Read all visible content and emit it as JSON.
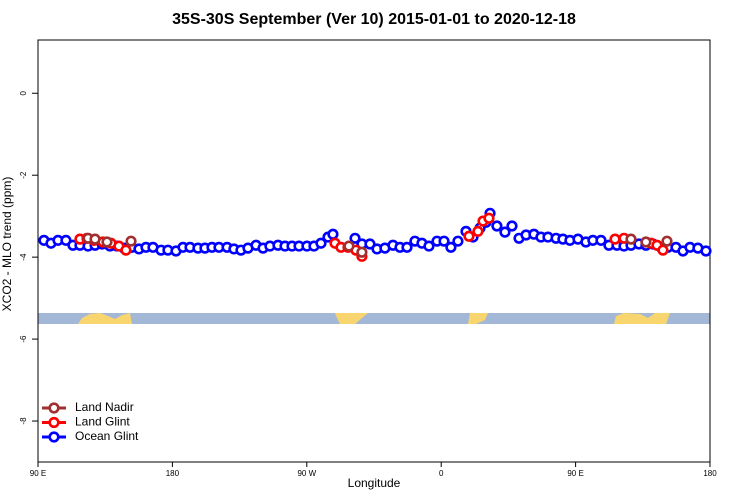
{
  "chart_data": {
    "type": "scatter",
    "title": "35S-30S September (Ver 10)   2015-01-01 to 2020-12-18",
    "x_label": "Longitude",
    "y_label": "XCO2 - MLO trend (ppm)",
    "xlim": [
      90,
      540
    ],
    "ylim": [
      -9,
      1.3
    ],
    "xticks": [
      {
        "value": 90,
        "label": "90 E"
      },
      {
        "value": 180,
        "label": "180"
      },
      {
        "value": 270,
        "label": "90 W"
      },
      {
        "value": 360,
        "label": "0"
      },
      {
        "value": 450,
        "label": "90 E"
      },
      {
        "value": 540,
        "label": "180"
      }
    ],
    "yticks": [
      0,
      -2,
      -4,
      -6,
      -8
    ],
    "legend": "bottom-left",
    "series": [
      {
        "name": "Land Nadir",
        "color": "#a03030",
        "x": [
          123.5,
          128.2,
          136.2,
          152.3,
          298.2,
          306.9,
          487.1,
          497.1,
          511.2
        ],
        "values": [
          -3.54,
          -3.56,
          -3.63,
          -3.61,
          -3.73,
          -3.88,
          -3.56,
          -3.63,
          -3.61
        ]
      },
      {
        "name": "Land Glint",
        "color": "#ff0000",
        "x": [
          118.1,
          122.8,
          127.5,
          133.5,
          138.9,
          144.2,
          148.9,
          288.9,
          292.9,
          297.6,
          302.9,
          306.9,
          378.6,
          384.6,
          388.0,
          392.0,
          476.4,
          482.4,
          500.5,
          504.5,
          508.5
        ],
        "values": [
          -3.56,
          -3.54,
          -3.59,
          -3.63,
          -3.66,
          -3.73,
          -3.83,
          -3.66,
          -3.76,
          -3.76,
          -3.83,
          -3.98,
          -3.49,
          -3.37,
          -3.12,
          -3.05,
          -3.56,
          -3.54,
          -3.66,
          -3.71,
          -3.83
        ]
      },
      {
        "name": "Ocean Glint",
        "color": "#0000ff",
        "x": [
          94.0,
          98.7,
          103.4,
          108.7,
          113.4,
          118.1,
          123.5,
          128.2,
          132.9,
          138.2,
          142.9,
          147.6,
          152.9,
          157.6,
          162.3,
          167.0,
          172.4,
          177.0,
          182.4,
          187.1,
          191.8,
          197.1,
          201.8,
          206.5,
          211.2,
          216.6,
          221.2,
          225.9,
          230.6,
          236.0,
          240.7,
          245.3,
          250.7,
          255.4,
          260.1,
          264.8,
          270.1,
          274.8,
          279.5,
          284.2,
          287.5,
          302.3,
          306.9,
          312.3,
          317.0,
          322.3,
          327.7,
          332.4,
          337.1,
          342.4,
          347.1,
          351.8,
          357.2,
          361.9,
          366.5,
          371.2,
          376.6,
          381.3,
          386.0,
          390.0,
          392.7,
          397.3,
          402.7,
          407.4,
          412.1,
          416.8,
          422.1,
          426.8,
          431.5,
          436.9,
          441.5,
          446.2,
          451.6,
          456.9,
          461.6,
          467.0,
          472.3,
          477.7,
          482.4,
          487.1,
          492.4,
          497.1,
          501.8,
          507.2,
          511.8,
          517.2,
          521.9,
          526.6,
          531.9,
          537.3
        ],
        "values": [
          -3.59,
          -3.66,
          -3.59,
          -3.59,
          -3.71,
          -3.71,
          -3.73,
          -3.71,
          -3.68,
          -3.73,
          -3.73,
          -3.78,
          -3.76,
          -3.8,
          -3.76,
          -3.76,
          -3.83,
          -3.83,
          -3.85,
          -3.76,
          -3.76,
          -3.78,
          -3.78,
          -3.76,
          -3.76,
          -3.76,
          -3.8,
          -3.83,
          -3.78,
          -3.71,
          -3.78,
          -3.73,
          -3.71,
          -3.73,
          -3.73,
          -3.73,
          -3.73,
          -3.73,
          -3.66,
          -3.51,
          -3.44,
          -3.54,
          -3.68,
          -3.68,
          -3.8,
          -3.78,
          -3.71,
          -3.76,
          -3.76,
          -3.61,
          -3.66,
          -3.73,
          -3.61,
          -3.61,
          -3.76,
          -3.61,
          -3.37,
          -3.51,
          -3.29,
          -3.15,
          -2.93,
          -3.24,
          -3.39,
          -3.24,
          -3.54,
          -3.46,
          -3.44,
          -3.51,
          -3.51,
          -3.54,
          -3.56,
          -3.59,
          -3.56,
          -3.63,
          -3.59,
          -3.59,
          -3.71,
          -3.71,
          -3.73,
          -3.71,
          -3.68,
          -3.71,
          -3.68,
          -3.76,
          -3.76,
          -3.76,
          -3.85,
          -3.76,
          -3.78,
          -3.85
        ]
      }
    ]
  }
}
